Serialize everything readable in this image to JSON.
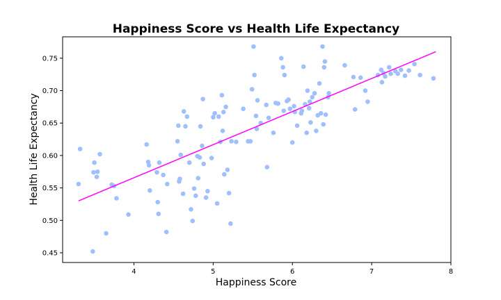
{
  "chart_data": {
    "type": "scatter",
    "title": "Happiness Score vs Health Life Expectancy",
    "xlabel": "Happiness Score",
    "ylabel": "Health Life Expectancy",
    "xlim": [
      3.1,
      8.0
    ],
    "ylim": [
      0.435,
      0.783
    ],
    "xticks": [
      4,
      5,
      6,
      7,
      8
    ],
    "yticks": [
      0.45,
      0.5,
      0.55,
      0.6,
      0.65,
      0.7,
      0.75
    ],
    "xtick_labels": [
      "4",
      "5",
      "6",
      "7",
      "8"
    ],
    "ytick_labels": [
      "0.45",
      "0.50",
      "0.55",
      "0.60",
      "0.65",
      "0.70",
      "0.75"
    ],
    "grid": false,
    "colors": {
      "points": "#9fbfff",
      "trendline": "#ff00ff"
    },
    "series": [
      {
        "x": [
          3.3,
          3.32,
          3.48,
          3.49,
          3.5,
          3.53,
          3.54,
          3.57,
          3.65,
          3.72,
          3.75,
          3.78,
          3.93,
          4.16,
          4.18,
          4.19,
          4.2,
          4.29,
          4.3,
          4.31,
          4.32,
          4.37,
          4.41,
          4.42,
          4.55,
          4.56,
          4.57,
          4.58,
          4.59,
          4.62,
          4.63,
          4.65,
          4.67,
          4.7,
          4.72,
          4.74,
          4.76,
          4.78,
          4.8,
          4.81,
          4.83,
          4.84,
          4.86,
          4.87,
          4.88,
          4.91,
          4.93,
          4.98,
          5.0,
          5.02,
          5.05,
          5.07,
          5.09,
          5.11,
          5.12,
          5.13,
          5.14,
          5.16,
          5.18,
          5.2,
          5.22,
          5.23,
          5.29,
          5.38,
          5.44,
          5.47,
          5.49,
          5.51,
          5.52,
          5.54,
          5.55,
          5.56,
          5.6,
          5.67,
          5.68,
          5.7,
          5.76,
          5.79,
          5.82,
          5.86,
          5.88,
          5.89,
          5.9,
          5.93,
          5.95,
          5.97,
          6.0,
          6.02,
          6.03,
          6.06,
          6.11,
          6.12,
          6.14,
          6.16,
          6.18,
          6.19,
          6.21,
          6.22,
          6.23,
          6.25,
          6.28,
          6.3,
          6.32,
          6.34,
          6.36,
          6.38,
          6.39,
          6.4,
          6.41,
          6.42,
          6.45,
          6.46,
          6.66,
          6.77,
          6.79,
          6.86,
          6.92,
          6.95,
          7.08,
          7.12,
          7.13,
          7.15,
          7.17,
          7.22,
          7.24,
          7.3,
          7.33,
          7.37,
          7.42,
          7.47,
          7.54,
          7.61,
          7.78
        ],
        "y": [
          0.556,
          0.61,
          0.452,
          0.574,
          0.589,
          0.567,
          0.575,
          0.602,
          0.48,
          0.555,
          0.553,
          0.534,
          0.509,
          0.617,
          0.59,
          0.585,
          0.546,
          0.574,
          0.528,
          0.51,
          0.589,
          0.57,
          0.482,
          0.556,
          0.622,
          0.646,
          0.56,
          0.564,
          0.601,
          0.541,
          0.668,
          0.645,
          0.66,
          0.589,
          0.517,
          0.499,
          0.549,
          0.538,
          0.599,
          0.565,
          0.597,
          0.645,
          0.615,
          0.687,
          0.587,
          0.535,
          0.545,
          0.596,
          0.659,
          0.665,
          0.526,
          0.66,
          0.621,
          0.693,
          0.638,
          0.667,
          0.571,
          0.675,
          0.578,
          0.542,
          0.495,
          0.622,
          0.621,
          0.672,
          0.622,
          0.622,
          0.702,
          0.768,
          0.724,
          0.661,
          0.641,
          0.685,
          0.65,
          0.678,
          0.582,
          0.658,
          0.635,
          0.681,
          0.68,
          0.75,
          0.736,
          0.669,
          0.724,
          0.684,
          0.686,
          0.672,
          0.62,
          0.676,
          0.667,
          0.646,
          0.665,
          0.669,
          0.737,
          0.679,
          0.635,
          0.7,
          0.673,
          0.683,
          0.651,
          0.69,
          0.696,
          0.638,
          0.662,
          0.711,
          0.665,
          0.768,
          0.648,
          0.736,
          0.745,
          0.663,
          0.69,
          0.696,
          0.739,
          0.721,
          0.671,
          0.72,
          0.7,
          0.683,
          0.724,
          0.732,
          0.713,
          0.727,
          0.722,
          0.736,
          0.726,
          0.73,
          0.726,
          0.732,
          0.723,
          0.731,
          0.741,
          0.724,
          0.719
        ]
      }
    ],
    "trendline": {
      "x": [
        3.3,
        7.81
      ],
      "y": [
        0.53,
        0.76
      ]
    }
  }
}
